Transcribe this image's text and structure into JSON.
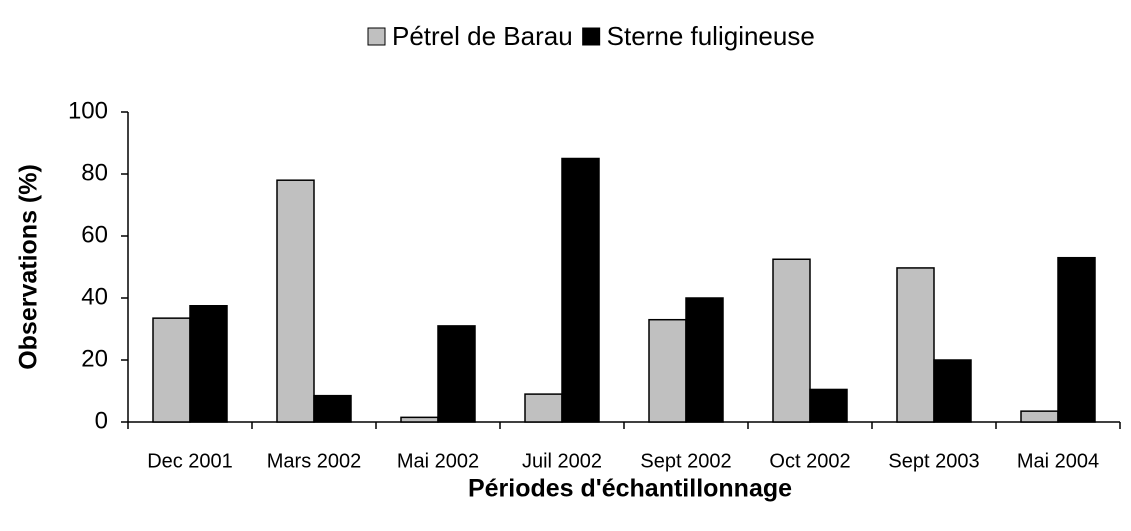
{
  "chart_data": {
    "type": "bar",
    "x_label": "Périodes d'échantillonnage",
    "y_label": "Observations (%)",
    "categories": [
      "Dec 2001",
      "Mars 2002",
      "Mai 2002",
      "Juil 2002",
      "Sept 2002",
      "Oct 2002",
      "Sept 2003",
      "Mai 2004"
    ],
    "series": [
      {
        "name": "Pétrel de Barau",
        "color": "#c0c0c0",
        "values": [
          33.5,
          78,
          1.5,
          9,
          33,
          52.5,
          49.7,
          3.5
        ]
      },
      {
        "name": "Sterne fuligineuse",
        "color": "#000000",
        "values": [
          37.5,
          8.5,
          31,
          85,
          40,
          10.5,
          20,
          53
        ]
      }
    ],
    "ylim": [
      0,
      100
    ],
    "yticks": [
      0,
      20,
      40,
      60,
      80,
      100
    ],
    "grid": false,
    "legend": "top"
  }
}
